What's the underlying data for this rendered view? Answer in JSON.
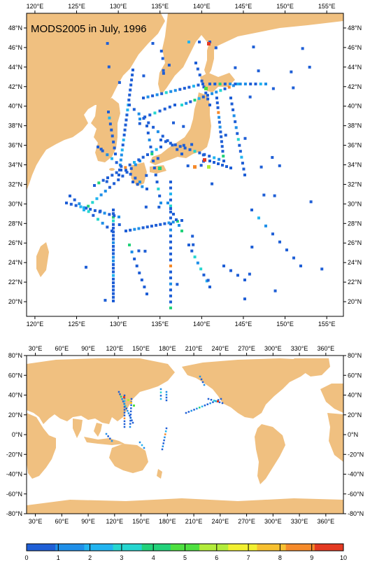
{
  "map_top": {
    "title": "MODS2005 in July, 1996",
    "lon_ticks": [
      "120°E",
      "125°E",
      "130°E",
      "135°E",
      "140°E",
      "145°E",
      "150°E",
      "155°E"
    ],
    "lat_ticks": [
      "48°N",
      "46°N",
      "44°N",
      "42°N",
      "40°N",
      "38°N",
      "36°N",
      "34°N",
      "32°N",
      "30°N",
      "28°N",
      "26°N",
      "24°N",
      "22°N",
      "20°N"
    ],
    "lon_range": [
      119,
      157
    ],
    "lat_range": [
      18.5,
      49.5
    ]
  },
  "map_bottom": {
    "lon_ticks": [
      "30°E",
      "60°E",
      "90°E",
      "120°E",
      "150°E",
      "180°E",
      "210°E",
      "240°E",
      "270°E",
      "300°E",
      "330°E",
      "360°E"
    ],
    "lat_ticks": [
      "80°N",
      "60°N",
      "40°N",
      "20°N",
      "0°N",
      "-20°N",
      "-40°N",
      "-60°N",
      "-80°N"
    ],
    "lon_range": [
      20,
      380
    ],
    "lat_range": [
      -80,
      80
    ]
  },
  "colorbar": {
    "labels": [
      "0",
      "1",
      "2",
      "3",
      "4",
      "5",
      "6",
      "7",
      "8",
      "9",
      "10"
    ],
    "colors": [
      "#1f5fd6",
      "#1f8fe8",
      "#22b4f0",
      "#26d6d0",
      "#22d27a",
      "#4ee040",
      "#b2ec3a",
      "#f2f030",
      "#f7c030",
      "#f58a2a",
      "#e43a22"
    ]
  },
  "colors": {
    "land": "#f0c080",
    "ocean": "#ffffff",
    "frame": "#000000"
  }
}
